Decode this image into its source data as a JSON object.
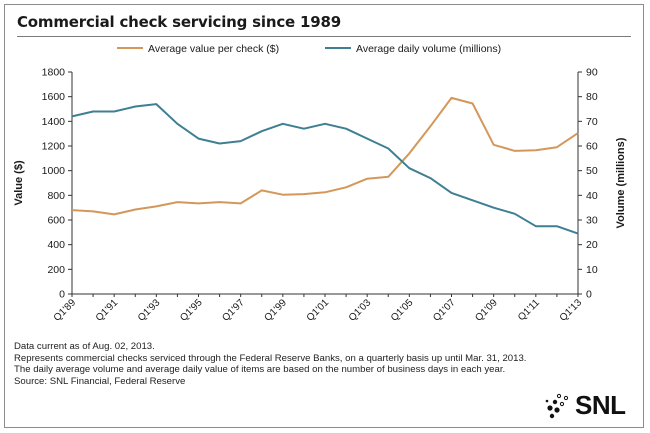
{
  "title": "Commercial check servicing since 1989",
  "chart_data": {
    "type": "line",
    "categories": [
      "Q1'89",
      "Q1'90",
      "Q1'91",
      "Q1'92",
      "Q1'93",
      "Q1'94",
      "Q1'95",
      "Q1'96",
      "Q1'97",
      "Q1'98",
      "Q1'99",
      "Q1'00",
      "Q1'01",
      "Q1'02",
      "Q1'03",
      "Q1'04",
      "Q1'05",
      "Q1'06",
      "Q1'07",
      "Q1'08",
      "Q1'09",
      "Q1'10",
      "Q1'11",
      "Q1'12",
      "Q1'13"
    ],
    "tick_labels": [
      "Q1'89",
      "Q1'91",
      "Q1'93",
      "Q1'95",
      "Q1'97",
      "Q1'99",
      "Q1'01",
      "Q1'03",
      "Q1'05",
      "Q1'07",
      "Q1'09",
      "Q1'11",
      "Q1'13"
    ],
    "series": [
      {
        "name": "Average value per check ($)",
        "axis": "left",
        "color": "#D4975A",
        "values": [
          680,
          670,
          645,
          685,
          710,
          745,
          735,
          745,
          735,
          840,
          805,
          810,
          825,
          865,
          935,
          950,
          1140,
          1360,
          1590,
          1545,
          1210,
          1160,
          1165,
          1190,
          1305
        ]
      },
      {
        "name": "Average daily volume (millions)",
        "axis": "right",
        "color": "#3E7F93",
        "values": [
          72,
          74,
          74,
          76,
          77,
          69,
          63,
          61,
          62,
          66,
          69,
          67,
          69,
          67,
          63,
          59,
          51,
          47,
          41,
          38,
          35,
          32.5,
          27.5,
          27.5,
          24.5
        ]
      }
    ],
    "ylabel": "Value ($)",
    "ylim": [
      0,
      1800
    ],
    "yticks": [
      0,
      200,
      400,
      600,
      800,
      1000,
      1200,
      1400,
      1600,
      1800
    ],
    "y2label": "Volume (millions)",
    "y2lim": [
      0,
      90
    ],
    "y2ticks": [
      0,
      10,
      20,
      30,
      40,
      50,
      60,
      70,
      80,
      90
    ],
    "grid": false,
    "legend_position": "top-center"
  },
  "notes": [
    "Data current as of Aug. 02, 2013.",
    "Represents commercial checks serviced through the Federal Reserve Banks, on a quarterly basis up until Mar. 31, 2013.",
    "The daily average volume and average daily value of items are based on the number of business days in each year.",
    "Source: SNL Financial, Federal Reserve"
  ],
  "logo": {
    "text": "SNL",
    "color": "#111111"
  }
}
